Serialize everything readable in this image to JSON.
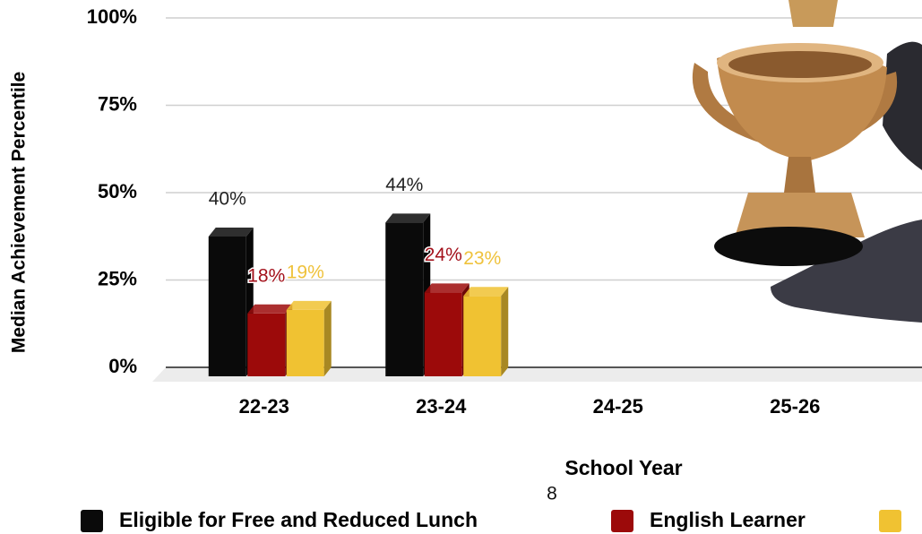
{
  "chart_data": {
    "type": "bar3d",
    "y_axis_label": "Median Achievement Percentile",
    "x_axis_label": "School Year",
    "categories": [
      "22-23",
      "23-24",
      "24-25",
      "25-26"
    ],
    "series": [
      {
        "name": "Eligible for Free and Reduced Lunch",
        "color": "#0a0a0a",
        "values": [
          40,
          44,
          null,
          null
        ],
        "value_labels": [
          "40%",
          "44%",
          null,
          null
        ],
        "label_color": "#222222"
      },
      {
        "name": "English Learner",
        "color": "#9c0a0a",
        "values": [
          18,
          24,
          null,
          null
        ],
        "value_labels": [
          "18%",
          "24%",
          null,
          null
        ],
        "label_color": "#a3111b"
      },
      {
        "color": "#f0c232",
        "values": [
          19,
          23,
          null,
          null
        ],
        "value_labels": [
          "19%",
          "23%",
          null,
          null
        ],
        "label_color": "#efc23c"
      }
    ],
    "ylim": [
      0,
      100
    ],
    "yticks": [
      {
        "value": 0,
        "label": "0%"
      },
      {
        "value": 25,
        "label": "25%"
      },
      {
        "value": 50,
        "label": "50%"
      },
      {
        "value": 75,
        "label": "75%"
      },
      {
        "value": 100,
        "label": "100%"
      }
    ],
    "grid": true,
    "legend": "bottom"
  },
  "page_number": "8"
}
